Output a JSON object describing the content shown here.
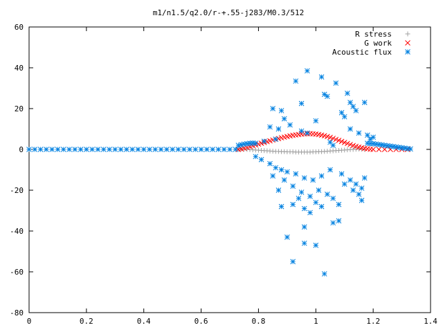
{
  "chart_data": {
    "type": "scatter",
    "title": "m1/n1.5/q2.0/r-+.55-j283/M0.3/512",
    "xlabel": "",
    "ylabel": "",
    "xlim": [
      0,
      1.4
    ],
    "ylim": [
      -80,
      60
    ],
    "xticks": [
      "0",
      "0.2",
      "0.4",
      "0.6",
      "0.8",
      "1",
      "1.2",
      "1.4"
    ],
    "yticks": [
      "-80",
      "-60",
      "-40",
      "-20",
      "0",
      "20",
      "40",
      "60"
    ],
    "grid": false,
    "legend_position": "top-right",
    "series": [
      {
        "name": "R stress",
        "marker": "plus",
        "color": "#a0a0a0",
        "points": [
          [
            0.73,
            0.3
          ],
          [
            0.74,
            0.2
          ],
          [
            0.75,
            0.1
          ],
          [
            0.76,
            0.0
          ],
          [
            0.77,
            -0.1
          ],
          [
            0.78,
            -0.2
          ],
          [
            0.79,
            -0.3
          ],
          [
            0.8,
            -0.4
          ],
          [
            0.81,
            -0.5
          ],
          [
            0.82,
            -0.6
          ],
          [
            0.83,
            -0.7
          ],
          [
            0.84,
            -0.8
          ],
          [
            0.85,
            -0.9
          ],
          [
            0.86,
            -1.0
          ],
          [
            0.87,
            -1.0
          ],
          [
            0.88,
            -1.1
          ],
          [
            0.89,
            -1.1
          ],
          [
            0.9,
            -1.2
          ],
          [
            0.91,
            -1.2
          ],
          [
            0.92,
            -1.2
          ],
          [
            0.93,
            -1.3
          ],
          [
            0.94,
            -1.3
          ],
          [
            0.95,
            -1.3
          ],
          [
            0.96,
            -1.3
          ],
          [
            0.97,
            -1.3
          ],
          [
            0.98,
            -1.3
          ],
          [
            0.99,
            -1.2
          ],
          [
            1.0,
            -1.2
          ],
          [
            1.01,
            -1.1
          ],
          [
            1.02,
            -1.1
          ],
          [
            1.03,
            -1.0
          ],
          [
            1.04,
            -0.9
          ],
          [
            1.05,
            -0.8
          ],
          [
            1.06,
            -0.7
          ],
          [
            1.07,
            -0.6
          ],
          [
            1.08,
            -0.5
          ],
          [
            1.09,
            -0.4
          ],
          [
            1.1,
            -0.3
          ],
          [
            1.11,
            -0.2
          ],
          [
            1.12,
            -0.1
          ],
          [
            1.13,
            0.0
          ],
          [
            1.14,
            0.1
          ],
          [
            1.15,
            0.2
          ],
          [
            1.16,
            0.1
          ],
          [
            1.17,
            0.0
          ]
        ]
      },
      {
        "name": "G work",
        "marker": "cross",
        "color": "#ff0000",
        "points": [
          [
            0.73,
            0.0
          ],
          [
            0.74,
            0.2
          ],
          [
            0.75,
            0.6
          ],
          [
            0.76,
            1.0
          ],
          [
            0.77,
            1.4
          ],
          [
            0.78,
            1.8
          ],
          [
            0.79,
            2.2
          ],
          [
            0.8,
            2.6
          ],
          [
            0.81,
            3.0
          ],
          [
            0.82,
            3.4
          ],
          [
            0.83,
            3.8
          ],
          [
            0.84,
            4.2
          ],
          [
            0.85,
            4.6
          ],
          [
            0.86,
            5.0
          ],
          [
            0.87,
            5.3
          ],
          [
            0.88,
            5.7
          ],
          [
            0.89,
            6.0
          ],
          [
            0.9,
            6.3
          ],
          [
            0.91,
            6.6
          ],
          [
            0.92,
            6.9
          ],
          [
            0.93,
            7.1
          ],
          [
            0.94,
            7.3
          ],
          [
            0.95,
            7.5
          ],
          [
            0.96,
            7.6
          ],
          [
            0.97,
            7.7
          ],
          [
            0.98,
            7.7
          ],
          [
            0.99,
            7.6
          ],
          [
            1.0,
            7.5
          ],
          [
            1.01,
            7.3
          ],
          [
            1.02,
            7.0
          ],
          [
            1.03,
            6.7
          ],
          [
            1.04,
            6.3
          ],
          [
            1.05,
            5.9
          ],
          [
            1.06,
            5.4
          ],
          [
            1.07,
            4.9
          ],
          [
            1.08,
            4.4
          ],
          [
            1.09,
            3.9
          ],
          [
            1.1,
            3.4
          ],
          [
            1.11,
            2.9
          ],
          [
            1.12,
            2.4
          ],
          [
            1.13,
            1.9
          ],
          [
            1.14,
            1.5
          ],
          [
            1.15,
            1.1
          ],
          [
            1.16,
            0.8
          ],
          [
            1.17,
            0.5
          ],
          [
            1.18,
            0.3
          ],
          [
            1.19,
            0.1
          ],
          [
            1.2,
            0.0
          ],
          [
            1.22,
            0.0
          ],
          [
            1.24,
            0.0
          ],
          [
            1.26,
            0.0
          ],
          [
            1.28,
            0.0
          ],
          [
            1.3,
            0.0
          ],
          [
            1.32,
            0.0
          ]
        ]
      },
      {
        "name": "Acoustic flux",
        "marker": "star",
        "color": "#0080e0",
        "points": [
          [
            0.0,
            0.0
          ],
          [
            0.02,
            0.0
          ],
          [
            0.04,
            0.0
          ],
          [
            0.06,
            0.0
          ],
          [
            0.08,
            0.0
          ],
          [
            0.1,
            0.0
          ],
          [
            0.12,
            0.0
          ],
          [
            0.14,
            0.0
          ],
          [
            0.16,
            0.0
          ],
          [
            0.18,
            0.0
          ],
          [
            0.2,
            0.0
          ],
          [
            0.22,
            0.0
          ],
          [
            0.24,
            0.0
          ],
          [
            0.26,
            0.0
          ],
          [
            0.28,
            0.0
          ],
          [
            0.3,
            0.0
          ],
          [
            0.32,
            0.0
          ],
          [
            0.34,
            0.0
          ],
          [
            0.36,
            0.0
          ],
          [
            0.38,
            0.0
          ],
          [
            0.4,
            0.0
          ],
          [
            0.42,
            0.0
          ],
          [
            0.44,
            0.0
          ],
          [
            0.46,
            0.0
          ],
          [
            0.48,
            0.0
          ],
          [
            0.5,
            0.0
          ],
          [
            0.52,
            0.0
          ],
          [
            0.54,
            0.0
          ],
          [
            0.56,
            0.0
          ],
          [
            0.58,
            0.0
          ],
          [
            0.6,
            0.0
          ],
          [
            0.62,
            0.0
          ],
          [
            0.64,
            0.0
          ],
          [
            0.66,
            0.0
          ],
          [
            0.68,
            0.0
          ],
          [
            0.7,
            0.0
          ],
          [
            0.72,
            0.0
          ],
          [
            0.73,
            2.0
          ],
          [
            0.74,
            2.3
          ],
          [
            0.75,
            2.6
          ],
          [
            0.76,
            2.8
          ],
          [
            0.77,
            3.0
          ],
          [
            0.78,
            3.1
          ],
          [
            0.79,
            3.0
          ],
          [
            1.18,
            3.0
          ],
          [
            1.19,
            2.9
          ],
          [
            1.2,
            2.8
          ],
          [
            1.21,
            2.6
          ],
          [
            1.22,
            2.4
          ],
          [
            1.23,
            2.2
          ],
          [
            1.24,
            2.0
          ],
          [
            1.25,
            1.8
          ],
          [
            1.26,
            1.6
          ],
          [
            1.27,
            1.4
          ],
          [
            1.28,
            1.2
          ],
          [
            1.29,
            1.0
          ],
          [
            1.3,
            0.8
          ],
          [
            1.31,
            0.6
          ],
          [
            1.32,
            0.4
          ],
          [
            1.33,
            0.2
          ],
          [
            0.97,
            38.5
          ],
          [
            1.02,
            35.5
          ],
          [
            0.93,
            33.5
          ],
          [
            1.07,
            32.5
          ],
          [
            1.03,
            27.0
          ],
          [
            1.04,
            26.0
          ],
          [
            1.11,
            27.5
          ],
          [
            0.95,
            22.5
          ],
          [
            0.85,
            20.0
          ],
          [
            0.88,
            19.0
          ],
          [
            1.12,
            23.0
          ],
          [
            1.13,
            21.0
          ],
          [
            1.14,
            19.0
          ],
          [
            1.17,
            23.0
          ],
          [
            1.09,
            18.0
          ],
          [
            1.1,
            16.0
          ],
          [
            0.89,
            15.0
          ],
          [
            1.0,
            14.0
          ],
          [
            0.91,
            12.0
          ],
          [
            0.84,
            11.0
          ],
          [
            0.87,
            10.0
          ],
          [
            0.95,
            9.0
          ],
          [
            1.12,
            10.0
          ],
          [
            1.15,
            8.0
          ],
          [
            1.18,
            7.0
          ],
          [
            1.2,
            6.0
          ],
          [
            0.82,
            4.0
          ],
          [
            1.05,
            3.5
          ],
          [
            0.97,
            8.0
          ],
          [
            0.86,
            5.0
          ],
          [
            1.06,
            2.0
          ],
          [
            1.19,
            5.0
          ],
          [
            0.79,
            -3.5
          ],
          [
            0.81,
            -5.0
          ],
          [
            0.84,
            -7.0
          ],
          [
            0.86,
            -9.0
          ],
          [
            0.88,
            -10.0
          ],
          [
            0.9,
            -11.0
          ],
          [
            0.93,
            -12.0
          ],
          [
            0.96,
            -14.0
          ],
          [
            0.99,
            -15.0
          ],
          [
            1.02,
            -13.0
          ],
          [
            1.05,
            -10.0
          ],
          [
            1.09,
            -12.0
          ],
          [
            1.12,
            -15.0
          ],
          [
            1.14,
            -17.0
          ],
          [
            1.16,
            -19.0
          ],
          [
            1.17,
            -14.0
          ],
          [
            0.85,
            -13.0
          ],
          [
            0.89,
            -15.0
          ],
          [
            0.92,
            -18.0
          ],
          [
            0.95,
            -21.0
          ],
          [
            0.98,
            -23.0
          ],
          [
            1.01,
            -20.0
          ],
          [
            1.04,
            -22.0
          ],
          [
            1.1,
            -17.0
          ],
          [
            1.13,
            -20.0
          ],
          [
            1.15,
            -22.0
          ],
          [
            1.16,
            -25.0
          ],
          [
            0.87,
            -20.0
          ],
          [
            0.94,
            -24.0
          ],
          [
            1.0,
            -26.0
          ],
          [
            1.06,
            -24.0
          ],
          [
            1.08,
            -27.0
          ],
          [
            0.88,
            -28.0
          ],
          [
            0.92,
            -27.0
          ],
          [
            0.96,
            -29.0
          ],
          [
            0.98,
            -31.0
          ],
          [
            1.02,
            -28.0
          ],
          [
            1.06,
            -36.0
          ],
          [
            1.08,
            -35.0
          ],
          [
            0.96,
            -38.0
          ],
          [
            0.9,
            -43.0
          ],
          [
            0.96,
            -46.0
          ],
          [
            1.0,
            -47.0
          ],
          [
            0.92,
            -55.0
          ],
          [
            1.03,
            -61.0
          ]
        ]
      }
    ]
  }
}
